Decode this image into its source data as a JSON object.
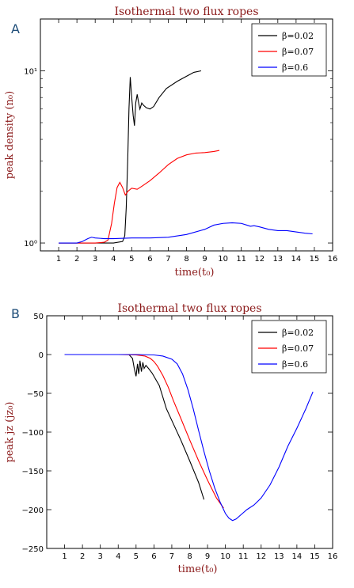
{
  "panels": [
    {
      "label": "A",
      "chart_data": {
        "type": "line",
        "title": "Isothermal two flux ropes",
        "xlabel": "time(t₀)",
        "ylabel": "peak density (n₀)",
        "x_scale": "linear",
        "y_scale": "log",
        "xlim": [
          0,
          16
        ],
        "ylim": [
          0.9,
          20
        ],
        "xticks": [
          1,
          2,
          3,
          4,
          5,
          6,
          7,
          8,
          9,
          10,
          11,
          12,
          13,
          14,
          15,
          16
        ],
        "yticks": [
          {
            "value": 1,
            "label": "10⁰"
          },
          {
            "value": 10,
            "label": "10¹"
          }
        ],
        "legend_position": "top-right",
        "series": [
          {
            "name": "β=0.02",
            "color": "#000000",
            "points": [
              [
                1,
                1
              ],
              [
                2,
                1
              ],
              [
                3,
                1
              ],
              [
                4,
                1
              ],
              [
                4.5,
                1.02
              ],
              [
                4.62,
                1.1
              ],
              [
                4.7,
                1.6
              ],
              [
                4.78,
                3
              ],
              [
                4.85,
                6
              ],
              [
                4.92,
                9.2
              ],
              [
                5.0,
                7
              ],
              [
                5.08,
                5.5
              ],
              [
                5.15,
                4.8
              ],
              [
                5.22,
                6.5
              ],
              [
                5.3,
                7.3
              ],
              [
                5.38,
                6.5
              ],
              [
                5.45,
                6.0
              ],
              [
                5.55,
                6.5
              ],
              [
                5.65,
                6.3
              ],
              [
                5.8,
                6.1
              ],
              [
                6.0,
                6.0
              ],
              [
                6.2,
                6.2
              ],
              [
                6.5,
                7
              ],
              [
                6.9,
                7.9
              ],
              [
                7.5,
                8.7
              ],
              [
                8.0,
                9.3
              ],
              [
                8.4,
                9.8
              ],
              [
                8.8,
                10
              ]
            ]
          },
          {
            "name": "β=0.07",
            "color": "#ff0000",
            "points": [
              [
                1,
                1
              ],
              [
                2,
                1
              ],
              [
                3,
                1
              ],
              [
                3.5,
                1.01
              ],
              [
                3.7,
                1.04
              ],
              [
                3.9,
                1.3
              ],
              [
                4.05,
                1.7
              ],
              [
                4.2,
                2.1
              ],
              [
                4.35,
                2.25
              ],
              [
                4.5,
                2.1
              ],
              [
                4.65,
                1.9
              ],
              [
                4.8,
                2.0
              ],
              [
                5.0,
                2.08
              ],
              [
                5.3,
                2.05
              ],
              [
                5.6,
                2.15
              ],
              [
                6.0,
                2.3
              ],
              [
                6.5,
                2.55
              ],
              [
                7.0,
                2.85
              ],
              [
                7.5,
                3.1
              ],
              [
                8.0,
                3.25
              ],
              [
                8.5,
                3.33
              ],
              [
                9.0,
                3.35
              ],
              [
                9.5,
                3.4
              ],
              [
                9.8,
                3.45
              ]
            ]
          },
          {
            "name": "β=0.6",
            "color": "#0000ff",
            "points": [
              [
                1,
                1
              ],
              [
                1.5,
                1
              ],
              [
                2.0,
                1.0
              ],
              [
                2.3,
                1.02
              ],
              [
                2.6,
                1.06
              ],
              [
                2.8,
                1.08
              ],
              [
                3.0,
                1.07
              ],
              [
                3.5,
                1.06
              ],
              [
                4,
                1.06
              ],
              [
                5,
                1.07
              ],
              [
                6,
                1.07
              ],
              [
                7,
                1.08
              ],
              [
                8,
                1.12
              ],
              [
                9,
                1.2
              ],
              [
                9.5,
                1.27
              ],
              [
                10,
                1.3
              ],
              [
                10.5,
                1.31
              ],
              [
                11,
                1.3
              ],
              [
                11.3,
                1.27
              ],
              [
                11.5,
                1.25
              ],
              [
                11.7,
                1.26
              ],
              [
                12,
                1.24
              ],
              [
                12.5,
                1.2
              ],
              [
                13,
                1.18
              ],
              [
                13.5,
                1.18
              ],
              [
                14,
                1.16
              ],
              [
                14.5,
                1.14
              ],
              [
                14.9,
                1.13
              ]
            ]
          }
        ]
      }
    },
    {
      "label": "B",
      "chart_data": {
        "type": "line",
        "title": "Isothermal two flux ropes",
        "xlabel": "time(t₀)",
        "ylabel": "peak jz (jz₀)",
        "x_scale": "linear",
        "y_scale": "linear",
        "xlim": [
          0,
          16
        ],
        "ylim": [
          -250,
          50
        ],
        "xticks": [
          1,
          2,
          3,
          4,
          5,
          6,
          7,
          8,
          9,
          10,
          11,
          12,
          13,
          14,
          15,
          16
        ],
        "yticks": [
          {
            "value": -250,
            "label": "−250"
          },
          {
            "value": -200,
            "label": "−200"
          },
          {
            "value": -150,
            "label": "−150"
          },
          {
            "value": -100,
            "label": "−100"
          },
          {
            "value": -50,
            "label": "−50"
          },
          {
            "value": 0,
            "label": "0"
          },
          {
            "value": 50,
            "label": "50"
          }
        ],
        "legend_position": "top-right",
        "series": [
          {
            "name": "β=0.02",
            "color": "#000000",
            "points": [
              [
                1,
                0
              ],
              [
                2,
                0
              ],
              [
                3,
                0
              ],
              [
                4,
                0
              ],
              [
                4.6,
                0
              ],
              [
                4.8,
                -5
              ],
              [
                4.9,
                -18
              ],
              [
                5.0,
                -28
              ],
              [
                5.08,
                -12
              ],
              [
                5.15,
                -25
              ],
              [
                5.22,
                -8
              ],
              [
                5.3,
                -22
              ],
              [
                5.38,
                -10
              ],
              [
                5.45,
                -18
              ],
              [
                5.55,
                -14
              ],
              [
                5.7,
                -18
              ],
              [
                5.9,
                -24
              ],
              [
                6.1,
                -32
              ],
              [
                6.3,
                -40
              ],
              [
                6.5,
                -55
              ],
              [
                6.7,
                -70
              ],
              [
                7.0,
                -85
              ],
              [
                7.5,
                -110
              ],
              [
                8.0,
                -137
              ],
              [
                8.5,
                -165
              ],
              [
                8.8,
                -187
              ]
            ]
          },
          {
            "name": "β=0.07",
            "color": "#ff0000",
            "points": [
              [
                1,
                0
              ],
              [
                2,
                0
              ],
              [
                3,
                0
              ],
              [
                4,
                0
              ],
              [
                5,
                -0.5
              ],
              [
                5.5,
                -2
              ],
              [
                5.8,
                -5
              ],
              [
                6.0,
                -9
              ],
              [
                6.2,
                -15
              ],
              [
                6.5,
                -27
              ],
              [
                6.8,
                -42
              ],
              [
                7.1,
                -60
              ],
              [
                7.5,
                -82
              ],
              [
                8.0,
                -110
              ],
              [
                8.5,
                -137
              ],
              [
                9.0,
                -162
              ],
              [
                9.5,
                -185
              ],
              [
                9.9,
                -198
              ]
            ]
          },
          {
            "name": "β=0.6",
            "color": "#0000ff",
            "points": [
              [
                1,
                0
              ],
              [
                2,
                0
              ],
              [
                3,
                0
              ],
              [
                4,
                0
              ],
              [
                5,
                0
              ],
              [
                6,
                -0.5
              ],
              [
                6.5,
                -2
              ],
              [
                7.0,
                -6
              ],
              [
                7.3,
                -12
              ],
              [
                7.6,
                -25
              ],
              [
                7.9,
                -45
              ],
              [
                8.2,
                -70
              ],
              [
                8.5,
                -98
              ],
              [
                8.8,
                -125
              ],
              [
                9.1,
                -150
              ],
              [
                9.4,
                -172
              ],
              [
                9.7,
                -190
              ],
              [
                10.0,
                -205
              ],
              [
                10.2,
                -211
              ],
              [
                10.4,
                -214
              ],
              [
                10.6,
                -212
              ],
              [
                10.9,
                -206
              ],
              [
                11.2,
                -200
              ],
              [
                11.6,
                -194
              ],
              [
                12.0,
                -185
              ],
              [
                12.5,
                -168
              ],
              [
                13.0,
                -145
              ],
              [
                13.5,
                -118
              ],
              [
                14.0,
                -95
              ],
              [
                14.5,
                -70
              ],
              [
                14.9,
                -48
              ]
            ]
          }
        ]
      }
    }
  ],
  "colors": {
    "title": "#8b1a1a",
    "axis_label": "#8b1a1a",
    "panel_label": "#1f4e79"
  }
}
